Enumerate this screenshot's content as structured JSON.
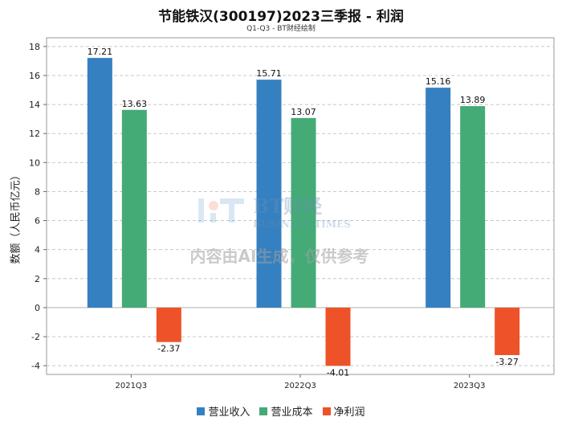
{
  "header": {
    "title": "节能铁汉(300197)2023三季报 - 利润",
    "subtitle": "Q1-Q3 - BT财经绘制"
  },
  "watermark": {
    "brand": "BT财经",
    "brand_en": "BUSINESS TIMES",
    "notice": "内容由AI生成，仅供参考"
  },
  "colors": {
    "revenue": "#3580c0",
    "cost": "#44ab77",
    "profit": "#ee5228"
  },
  "chart_data": {
    "type": "bar",
    "title": "节能铁汉(300197)2023三季报 - 利润",
    "subtitle": "Q1-Q3 - BT财经绘制",
    "xlabel": "",
    "ylabel": "数额（人民币亿元）",
    "ylim": [
      -4.6,
      18.6
    ],
    "yticks": [
      -4,
      -2,
      0,
      2,
      4,
      6,
      8,
      10,
      12,
      14,
      16,
      18
    ],
    "grid": true,
    "legend_position": "bottom",
    "categories": [
      "2021Q3",
      "2022Q3",
      "2023Q3"
    ],
    "series": [
      {
        "name": "营业收入",
        "values": [
          17.21,
          15.71,
          15.16
        ]
      },
      {
        "name": "营业成本",
        "values": [
          13.63,
          13.07,
          13.89
        ]
      },
      {
        "name": "净利润",
        "values": [
          -2.37,
          -4.01,
          -3.27
        ]
      }
    ]
  }
}
